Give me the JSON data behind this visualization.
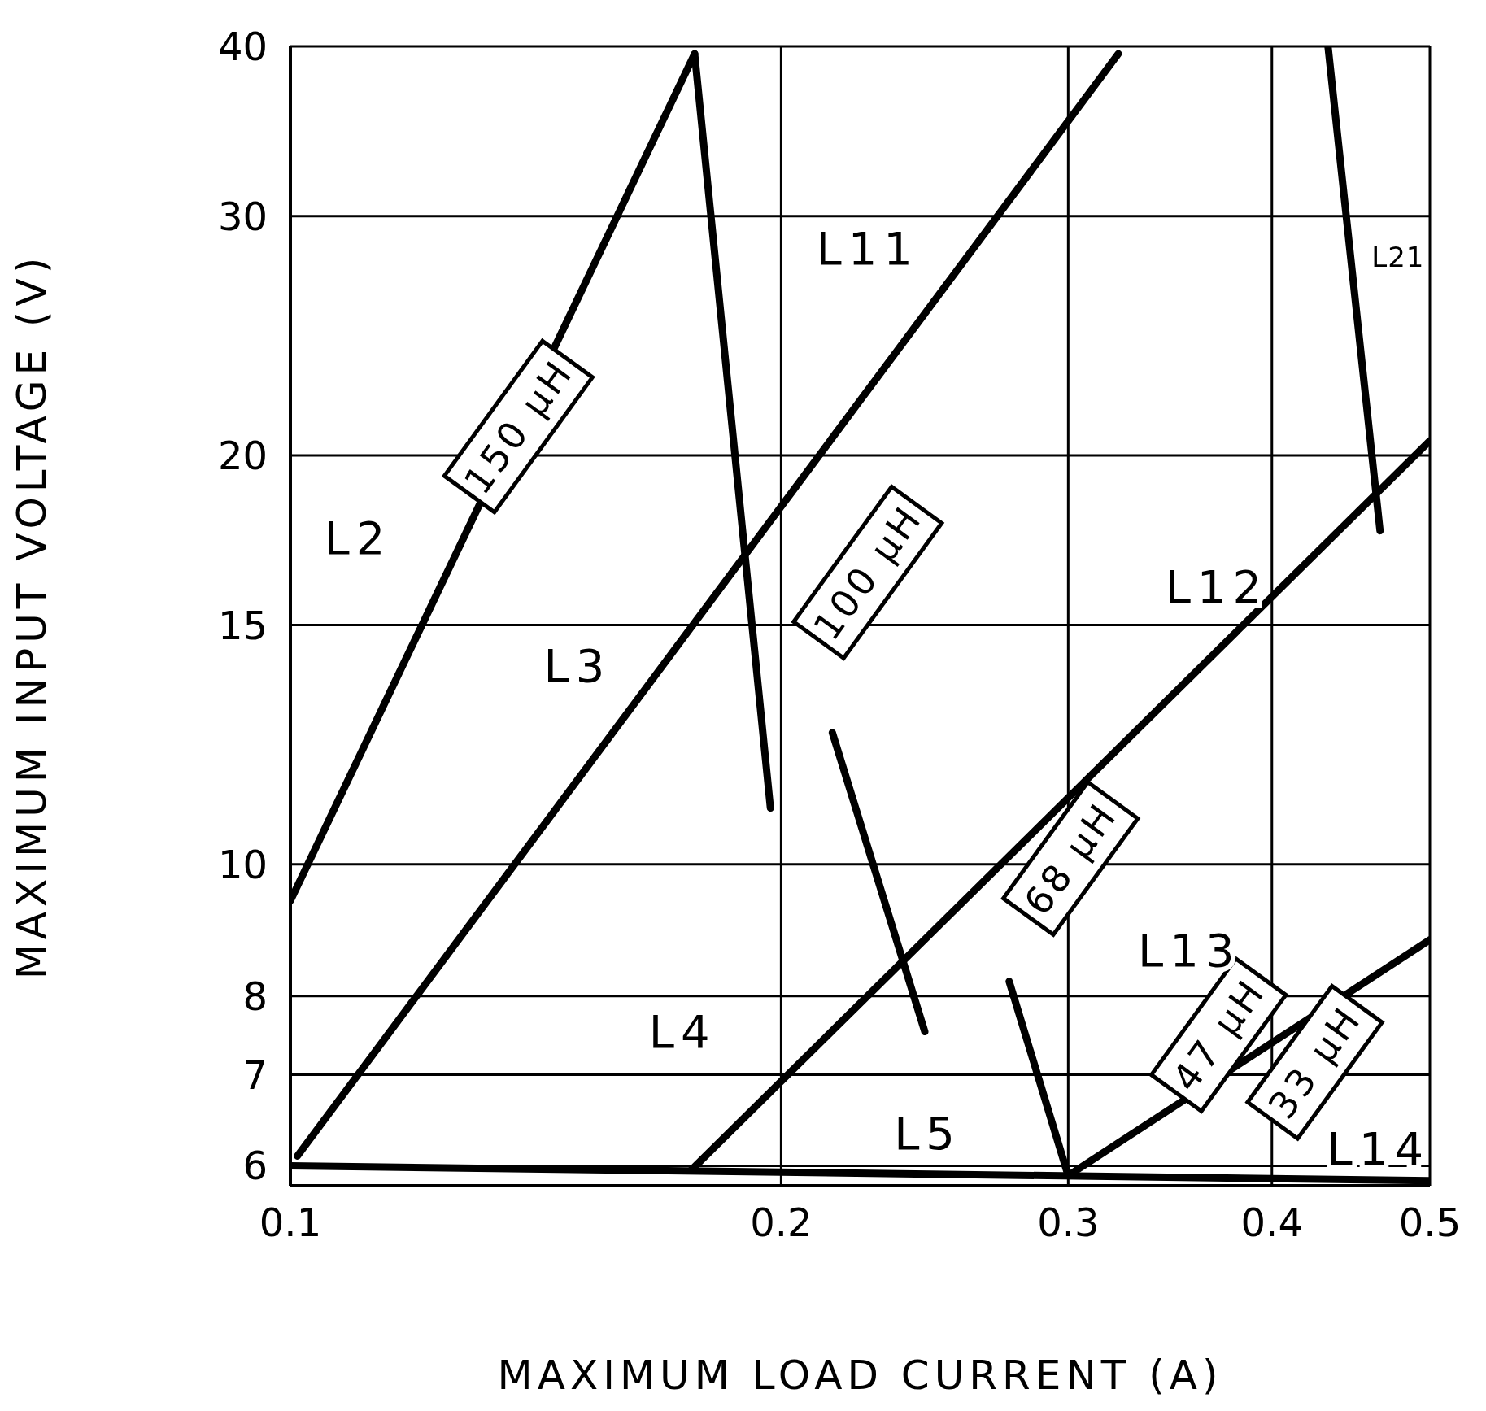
{
  "chart_data": {
    "type": "line",
    "xlabel": "MAXIMUM LOAD CURRENT (A)",
    "ylabel": "MAXIMUM INPUT VOLTAGE (V)",
    "log": "xy",
    "grid": true,
    "marker": "none",
    "line_style": "solid",
    "xlim": [
      0.1,
      0.5
    ],
    "xticks": [
      0.1,
      0.2,
      0.3,
      0.4,
      0.5
    ],
    "ylim": [
      5.8,
      40
    ],
    "yticks": [
      6,
      7,
      8,
      10,
      15,
      20,
      30,
      40
    ],
    "series": [
      {
        "color": "#000000",
        "x": [
          0.1,
          0.177
        ],
        "values": [
          9.4,
          39.5
        ]
      },
      {
        "color": "#000000",
        "x": [
          0.177,
          0.197
        ],
        "values": [
          39.5,
          11.0
        ]
      },
      {
        "color": "#000000",
        "x": [
          0.101,
          0.322
        ],
        "values": [
          6.1,
          39.5
        ]
      },
      {
        "color": "#000000",
        "x": [
          0.215,
          0.245
        ],
        "values": [
          12.5,
          7.53
        ]
      },
      {
        "color": "#000000",
        "x": [
          0.176,
          0.5
        ],
        "values": [
          5.95,
          20.5
        ]
      },
      {
        "color": "#000000",
        "x": [
          0.276,
          0.3
        ],
        "values": [
          8.2,
          5.9
        ]
      },
      {
        "color": "#000000",
        "x": [
          0.3,
          0.5
        ],
        "values": [
          5.9,
          8.8
        ]
      },
      {
        "color": "#000000",
        "x": [
          0.433,
          0.466
        ],
        "values": [
          40,
          17.6
        ]
      },
      {
        "color": "#000000",
        "x": [
          0.1,
          0.5
        ],
        "values": [
          6.0,
          5.85
        ]
      }
    ],
    "annotations": [
      "150 µH",
      "100 µH",
      "68 µH",
      "47 µH",
      "33 µH",
      "L2",
      "L3",
      "L4",
      "L5",
      "L11",
      "L12",
      "L13",
      "L14",
      "L21"
    ]
  }
}
